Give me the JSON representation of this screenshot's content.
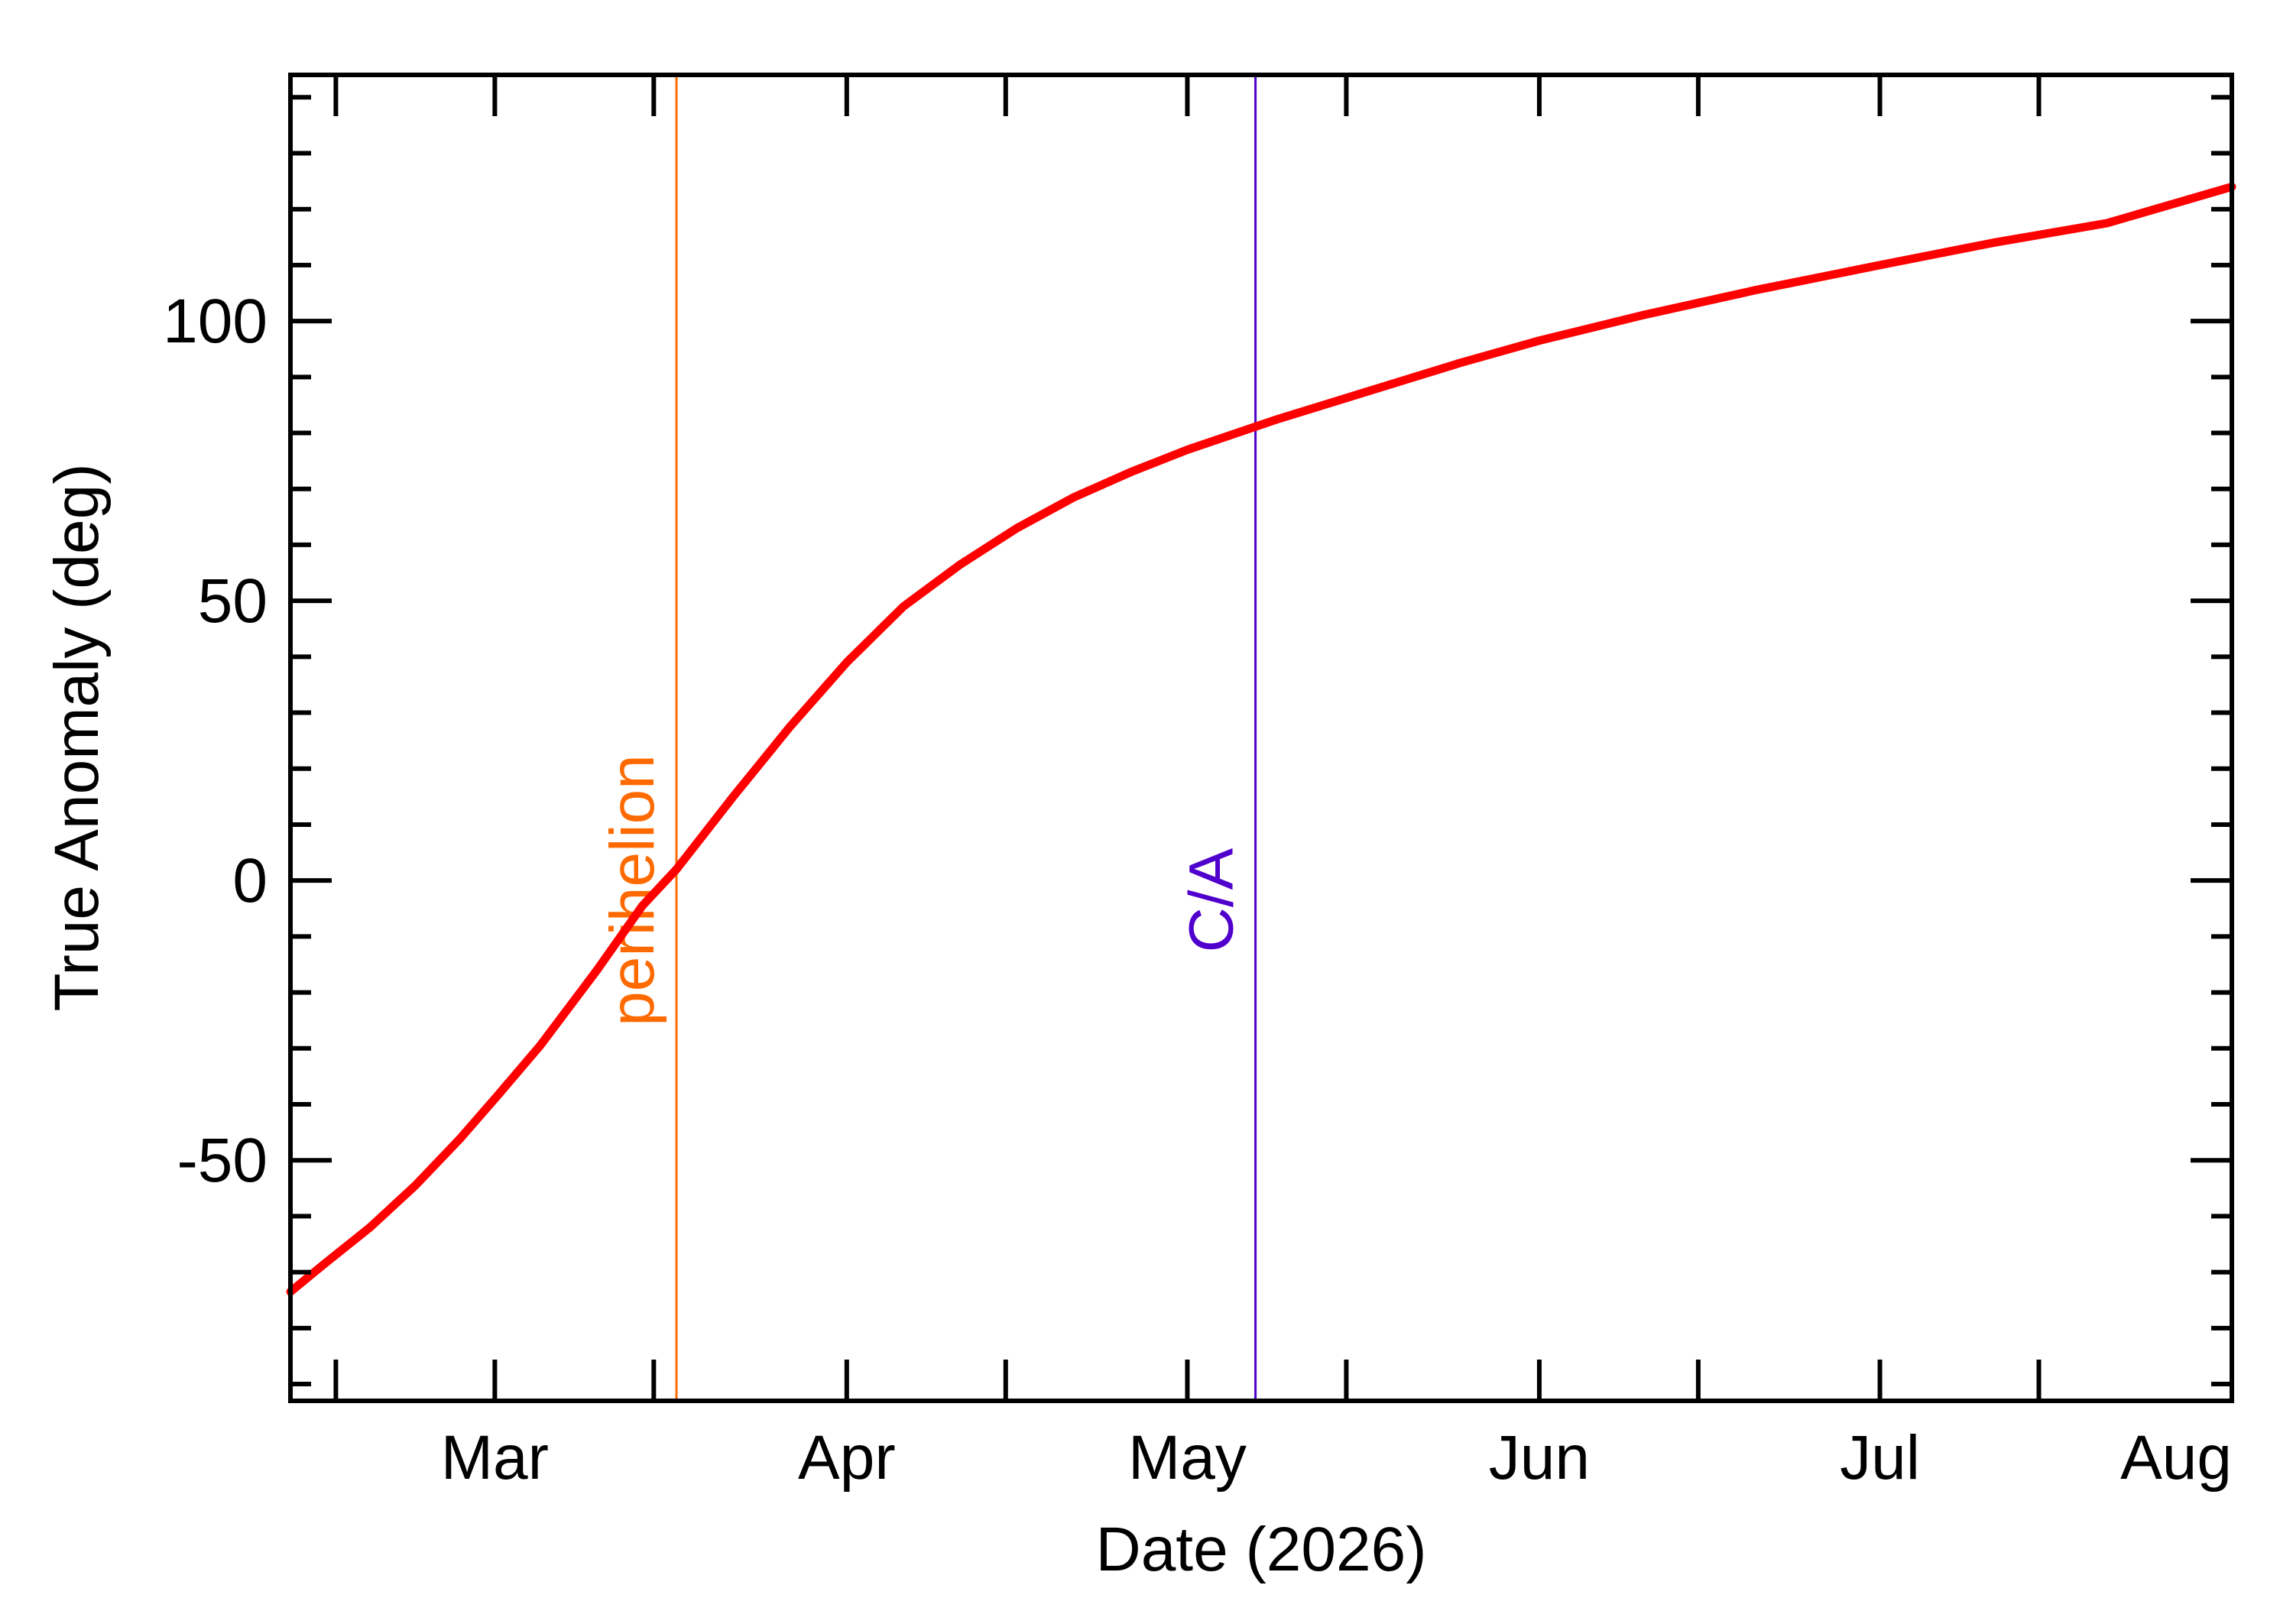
{
  "chart_data": {
    "type": "line",
    "xlabel": "Date (2026)",
    "ylabel": "True Anomaly (deg)",
    "x_unit": "date",
    "xlim": [
      "2026-02-11",
      "2026-08-01"
    ],
    "ylim": [
      -93,
      144
    ],
    "x_major_ticks": [
      {
        "label": "Mar",
        "date": "2026-03-01"
      },
      {
        "label": "Apr",
        "date": "2026-04-01"
      },
      {
        "label": "May",
        "date": "2026-05-01"
      },
      {
        "label": "Jun",
        "date": "2026-06-01"
      },
      {
        "label": "Jul",
        "date": "2026-07-01"
      },
      {
        "label": "Aug",
        "date": "2026-08-01"
      }
    ],
    "y_ticks": [
      {
        "label": "-50",
        "value": -50
      },
      {
        "label": "0",
        "value": 0
      },
      {
        "label": "50",
        "value": 50
      },
      {
        "label": "100",
        "value": 100
      }
    ],
    "y_minor_step": 10,
    "series": [
      {
        "color": "#ff0000",
        "points": [
          {
            "x": "2026-02-11",
            "y": -73.5
          },
          {
            "x": "2026-02-14",
            "y": -68.5
          },
          {
            "x": "2026-02-18",
            "y": -62
          },
          {
            "x": "2026-02-22",
            "y": -54.5
          },
          {
            "x": "2026-02-26",
            "y": -46
          },
          {
            "x": "2026-03-01",
            "y": -39
          },
          {
            "x": "2026-03-05",
            "y": -29.5
          },
          {
            "x": "2026-03-10",
            "y": -16
          },
          {
            "x": "2026-03-14",
            "y": -4.5
          },
          {
            "x": "2026-03-17",
            "y": 2
          },
          {
            "x": "2026-03-22",
            "y": 15
          },
          {
            "x": "2026-03-27",
            "y": 27.5
          },
          {
            "x": "2026-04-01",
            "y": 39
          },
          {
            "x": "2026-04-06",
            "y": 49
          },
          {
            "x": "2026-04-11",
            "y": 56.5
          },
          {
            "x": "2026-04-16",
            "y": 63
          },
          {
            "x": "2026-04-21",
            "y": 68.5
          },
          {
            "x": "2026-04-26",
            "y": 73
          },
          {
            "x": "2026-05-01",
            "y": 77
          },
          {
            "x": "2026-05-09",
            "y": 82.5
          },
          {
            "x": "2026-05-17",
            "y": 87.5
          },
          {
            "x": "2026-05-25",
            "y": 92.5
          },
          {
            "x": "2026-06-01",
            "y": 96.5
          },
          {
            "x": "2026-06-10",
            "y": 101
          },
          {
            "x": "2026-06-20",
            "y": 105.5
          },
          {
            "x": "2026-07-01",
            "y": 110
          },
          {
            "x": "2026-07-11",
            "y": 114
          },
          {
            "x": "2026-07-21",
            "y": 117.5
          },
          {
            "x": "2026-08-01",
            "y": 124
          }
        ]
      }
    ],
    "markers": [
      {
        "label": "perihelion",
        "date": "2026-03-17",
        "color": "#ff6a00"
      },
      {
        "label": "C/A",
        "date": "2026-05-07",
        "color": "#5000cc"
      }
    ],
    "grid": false,
    "legend": "none"
  }
}
